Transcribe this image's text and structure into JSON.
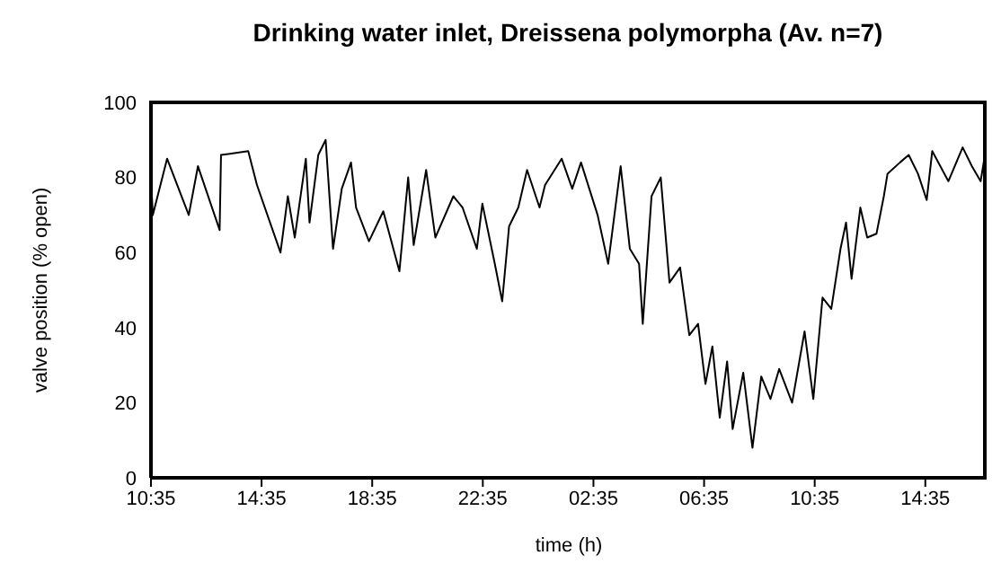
{
  "chart_data": {
    "type": "line",
    "title": "Drinking water inlet, Dreissena polymorpha  (Av. n=7)",
    "xlabel": "time (h)",
    "ylabel": "valve position (% open)",
    "x": [
      "--01-01T10:35",
      "--01-01T10:39",
      "--01-01T11:10",
      "--01-01T11:57",
      "--01-01T12:17",
      "--01-01T13:04",
      "--01-01T13:07",
      "--01-01T14:06",
      "--01-01T14:25",
      "--01-01T15:16",
      "--01-01T15:32",
      "--01-01T15:47",
      "--01-01T16:11",
      "--01-01T16:19",
      "--01-01T16:38",
      "--01-01T16:54",
      "--01-01T17:10",
      "--01-01T17:29",
      "--01-01T17:49",
      "--01-01T18:00",
      "--01-01T18:28",
      "--01-01T18:59",
      "--01-01T19:34",
      "--01-01T19:53",
      "--01-01T20:05",
      "--01-01T20:32",
      "--01-01T20:52",
      "--01-01T21:31",
      "--01-01T21:51",
      "--01-01T22:22",
      "--01-01T22:34",
      "--01-01T23:01",
      "--01-01T23:17",
      "--01-01T23:32",
      "--01-01T23:52",
      "--01-02T00:11",
      "--01-02T00:38",
      "--01-02T00:50",
      "--01-02T01:26",
      "--01-02T01:49",
      "--01-02T02:08",
      "--01-02T02:44",
      "--01-02T03:07",
      "--01-02T03:34",
      "--01-02T03:54",
      "--01-02T04:14",
      "--01-02T04:22",
      "--01-02T04:41",
      "--01-02T05:01",
      "--01-02T05:20",
      "--01-02T05:43",
      "--01-02T06:03",
      "--01-02T06:22",
      "--01-02T06:38",
      "--01-02T06:53",
      "--01-02T07:09",
      "--01-02T07:25",
      "--01-02T07:37",
      "--01-02T08:00",
      "--01-02T08:20",
      "--01-02T08:39",
      "--01-02T08:59",
      "--01-02T09:18",
      "--01-02T09:46",
      "--01-02T10:13",
      "--01-02T10:32",
      "--01-02T10:52",
      "--01-02T11:11",
      "--01-02T11:31",
      "--01-02T11:43",
      "--01-02T11:55",
      "--01-02T12:14",
      "--01-02T12:29",
      "--01-02T12:49",
      "--01-02T13:05",
      "--01-02T13:13",
      "--01-02T13:40",
      "--01-02T13:59",
      "--01-02T14:19",
      "--01-02T14:38",
      "--01-02T14:50",
      "--01-02T15:25",
      "--01-02T15:56",
      "--01-02T16:16",
      "--01-02T16:35",
      "--01-02T16:47"
    ],
    "series": [
      {
        "color": "#000000",
        "values": [
          80,
          70,
          85,
          70,
          83,
          66,
          86,
          87,
          78,
          60,
          75,
          64,
          85,
          68,
          86,
          90,
          61,
          77,
          84,
          72,
          63,
          71,
          55,
          80,
          62,
          82,
          64,
          75,
          72,
          61,
          73,
          57,
          47,
          67,
          72,
          82,
          72,
          78,
          85,
          77,
          84,
          70,
          57,
          83,
          61,
          57,
          41,
          75,
          80,
          52,
          56,
          38,
          41,
          25,
          35,
          16,
          31,
          13,
          28,
          8,
          27,
          21,
          29,
          20,
          39,
          21,
          48,
          45,
          61,
          68,
          53,
          72,
          64,
          65,
          75,
          81,
          84,
          86,
          81,
          74,
          87,
          79,
          88,
          83,
          79,
          88
        ]
      }
    ],
    "xlim": [
      "--01-01T10:35",
      "--01-02T16:48"
    ],
    "xticks": [
      {
        "value": "--01-01T10:35",
        "label": "10:35"
      },
      {
        "value": "--01-01T14:35",
        "label": "14:35"
      },
      {
        "value": "--01-01T18:35",
        "label": "18:35"
      },
      {
        "value": "--01-01T22:35",
        "label": "22:35"
      },
      {
        "value": "--01-02T02:35",
        "label": "02:35"
      },
      {
        "value": "--01-02T06:35",
        "label": "06:35"
      },
      {
        "value": "--01-02T10:35",
        "label": "10:35"
      },
      {
        "value": "--01-02T14:35",
        "label": "14:35"
      }
    ],
    "ylim": [
      0,
      100
    ],
    "yticks": [
      0,
      20,
      40,
      60,
      80,
      100
    ],
    "grid": false,
    "legend": false,
    "marker": "none",
    "line_style": "solid"
  }
}
